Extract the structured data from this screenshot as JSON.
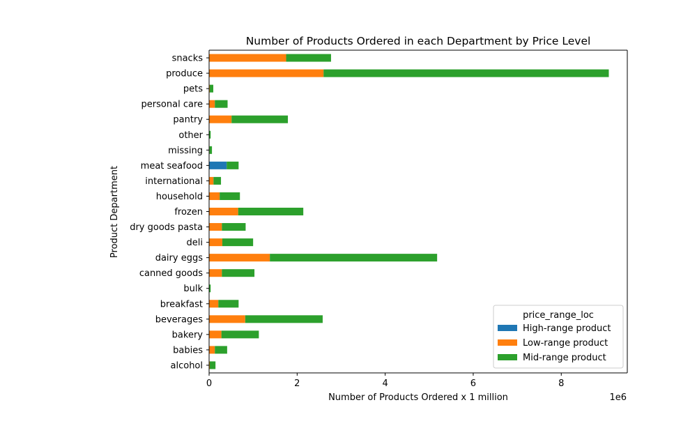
{
  "chart_data": {
    "type": "bar",
    "orientation": "horizontal",
    "stacked": true,
    "title": "Number of Products Ordered in each Department by Price Level",
    "xlabel": "Number of Products Ordered x 1 million",
    "ylabel": "Product Department",
    "x_offset_label": "1e6",
    "xlim": [
      0,
      9500000
    ],
    "xticks": [
      0,
      2000000,
      4000000,
      6000000,
      8000000
    ],
    "xtick_labels": [
      "0",
      "2",
      "4",
      "6",
      "8"
    ],
    "grid": false,
    "legend": {
      "title": "price_range_loc",
      "placement": "lower right"
    },
    "categories": [
      "alcohol",
      "babies",
      "bakery",
      "beverages",
      "breakfast",
      "bulk",
      "canned goods",
      "dairy eggs",
      "deli",
      "dry goods pasta",
      "frozen",
      "household",
      "international",
      "meat seafood",
      "missing",
      "other",
      "pantry",
      "personal care",
      "pets",
      "produce",
      "snacks"
    ],
    "series": [
      {
        "name": "High-range product",
        "color": "#1f77b4",
        "values": [
          0,
          0,
          0,
          0,
          0,
          0,
          0,
          0,
          0,
          0,
          0,
          0,
          0,
          400000,
          0,
          0,
          0,
          0,
          0,
          0,
          0
        ]
      },
      {
        "name": "Low-range product",
        "color": "#ff7f0e",
        "values": [
          15000,
          130000,
          280000,
          820000,
          210000,
          5000,
          290000,
          1380000,
          300000,
          290000,
          660000,
          240000,
          100000,
          0,
          10000,
          5000,
          510000,
          130000,
          15000,
          2600000,
          1750000
        ]
      },
      {
        "name": "Mid-range product",
        "color": "#2ca02c",
        "values": [
          130000,
          280000,
          850000,
          1760000,
          460000,
          30000,
          740000,
          3800000,
          700000,
          540000,
          1480000,
          460000,
          170000,
          270000,
          55000,
          30000,
          1280000,
          290000,
          80000,
          6480000,
          1020000
        ]
      }
    ]
  }
}
